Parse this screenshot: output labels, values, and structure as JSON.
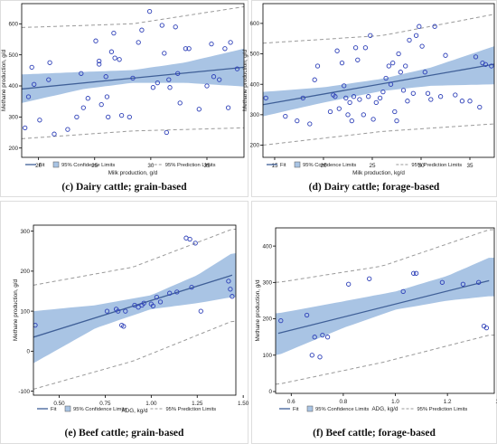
{
  "figure": {
    "legend": {
      "fit": "Fit",
      "confidence": "95% Confidence Limits",
      "prediction": "95% Prediction Limits"
    },
    "colors": {
      "band": "#a9c4e4",
      "fit_line": "#3f5f97",
      "point": "#2e40b8",
      "prediction": "#9a9a9a",
      "frame": "#000000"
    }
  },
  "chart_data": [
    {
      "type": "scatter",
      "panel": "c",
      "caption": "(c) Dairy cattle; grain-based",
      "xlabel": "Milk production, g/d",
      "ylabel": "Methane production, g/d",
      "xlim": [
        18.5,
        38.3
      ],
      "ylim": [
        170,
        665
      ],
      "xticks": [
        20,
        25,
        30,
        35
      ],
      "yticks": [
        200,
        300,
        400,
        500,
        600
      ],
      "fit": [
        [
          18.5,
          390
        ],
        [
          38.3,
          460
        ]
      ],
      "confidence": {
        "x": [
          18.5,
          24,
          28.4,
          33,
          38.3
        ],
        "lower": [
          345,
          390,
          410,
          410,
          398
        ],
        "upper": [
          437,
          445,
          451,
          475,
          520
        ]
      },
      "prediction": {
        "x": [
          18.5,
          28.4,
          38.3
        ],
        "lower": [
          230,
          255,
          265
        ],
        "upper": [
          588,
          600,
          655
        ]
      },
      "x": [
        18.8,
        19.1,
        19.4,
        19.6,
        20.1,
        20.9,
        21.0,
        21.4,
        22.6,
        23.4,
        23.8,
        24.0,
        24.4,
        25.1,
        25.4,
        25.4,
        25.6,
        26.0,
        26.1,
        26.2,
        26.5,
        26.7,
        26.8,
        27.2,
        27.4,
        28.1,
        28.4,
        28.9,
        29.2,
        29.9,
        30.2,
        30.6,
        31.0,
        31.2,
        31.4,
        31.6,
        31.7,
        32.2,
        32.4,
        32.6,
        33.1,
        33.4,
        34.3,
        35.0,
        35.4,
        35.6,
        36.1,
        36.6,
        36.9,
        37.1,
        37.7
      ],
      "y": [
        265,
        365,
        460,
        405,
        290,
        420,
        475,
        245,
        260,
        300,
        440,
        330,
        360,
        545,
        470,
        480,
        340,
        430,
        365,
        300,
        510,
        570,
        490,
        485,
        305,
        300,
        425,
        540,
        580,
        640,
        395,
        410,
        595,
        505,
        250,
        420,
        395,
        590,
        440,
        345,
        520,
        520,
        325,
        400,
        535,
        430,
        420,
        520,
        330,
        540,
        455
      ]
    },
    {
      "type": "scatter",
      "panel": "d",
      "caption": "(d) Dairy cattle; forage-based",
      "xlabel": "Milk production, kg/d",
      "ylabel": "Methane production, g/d",
      "xlim": [
        13.8,
        37.5
      ],
      "ylim": [
        160,
        665
      ],
      "xticks": [
        15,
        20,
        25,
        30,
        35
      ],
      "yticks": [
        200,
        300,
        400,
        500,
        600
      ],
      "fit": [
        [
          13.8,
          333
        ],
        [
          37.5,
          466
        ]
      ],
      "confidence": {
        "x": [
          13.8,
          20,
          26,
          31,
          37.5
        ],
        "lower": [
          295,
          340,
          378,
          395,
          400
        ],
        "upper": [
          375,
          390,
          418,
          455,
          525
        ]
      },
      "prediction": {
        "x": [
          13.8,
          26,
          37.5
        ],
        "lower": [
          200,
          245,
          270
        ],
        "upper": [
          535,
          560,
          630
        ]
      },
      "x": [
        14.1,
        16.1,
        17.3,
        17.9,
        18.6,
        19.1,
        19.4,
        20.7,
        21.0,
        21.2,
        21.4,
        21.6,
        21.9,
        22.1,
        22.3,
        22.5,
        22.7,
        22.9,
        23.1,
        23.3,
        23.5,
        23.7,
        24.1,
        24.3,
        24.6,
        24.8,
        25.1,
        25.4,
        25.8,
        26.1,
        26.4,
        26.7,
        26.9,
        27.1,
        27.3,
        27.5,
        27.7,
        27.9,
        28.2,
        28.4,
        28.6,
        28.8,
        29.2,
        29.5,
        29.8,
        30.1,
        30.4,
        30.7,
        31.0,
        31.4,
        32.0,
        32.5,
        33.5,
        34.2,
        35.0,
        35.6,
        36.0,
        36.3,
        36.6,
        37.2
      ],
      "y": [
        355,
        295,
        280,
        355,
        270,
        415,
        460,
        310,
        365,
        360,
        510,
        320,
        470,
        395,
        355,
        300,
        340,
        280,
        360,
        520,
        480,
        350,
        300,
        520,
        360,
        560,
        285,
        340,
        355,
        375,
        420,
        460,
        400,
        470,
        310,
        280,
        500,
        440,
        380,
        460,
        345,
        545,
        370,
        560,
        590,
        525,
        440,
        370,
        350,
        590,
        360,
        495,
        365,
        345,
        345,
        490,
        325,
        470,
        465,
        460
      ]
    },
    {
      "type": "scatter",
      "panel": "e",
      "caption": "(e) Beef cattle; grain-based",
      "xlabel": "ADG, kg/d",
      "ylabel": "Methane production, g/d",
      "xlim": [
        0.36,
        1.46
      ],
      "ylim": [
        -110,
        315
      ],
      "xticks": [
        0.5,
        0.75,
        1.0,
        1.25,
        1.5
      ],
      "xtick_labels": [
        "0.50",
        "0.75",
        "1.00",
        "1.25",
        "1.50"
      ],
      "yticks": [
        -100,
        0,
        100,
        200,
        300
      ],
      "fit": [
        [
          0.36,
          35
        ],
        [
          1.44,
          190
        ]
      ],
      "confidence": {
        "x": [
          0.36,
          0.7,
          1.0,
          1.25,
          1.44
        ],
        "lower": [
          -30,
          58,
          105,
          120,
          135
        ],
        "upper": [
          100,
          115,
          140,
          190,
          245
        ]
      },
      "prediction": {
        "x": [
          0.36,
          0.9,
          1.44
        ],
        "lower": [
          -95,
          -25,
          75
        ],
        "upper": [
          165,
          210,
          305
        ]
      },
      "x": [
        0.37,
        0.76,
        0.81,
        0.82,
        0.84,
        0.85,
        0.86,
        0.91,
        0.93,
        0.95,
        0.96,
        1.0,
        1.01,
        1.03,
        1.05,
        1.1,
        1.14,
        1.19,
        1.21,
        1.22,
        1.24,
        1.27,
        1.42,
        1.43,
        1.44
      ],
      "y": [
        65,
        100,
        105,
        100,
        65,
        62,
        100,
        115,
        110,
        115,
        120,
        118,
        113,
        135,
        123,
        145,
        148,
        283,
        280,
        160,
        270,
        100,
        175,
        155,
        137
      ]
    },
    {
      "type": "scatter",
      "panel": "f",
      "caption": "(f) Beef cattle; forage-based",
      "xlabel": "ADG, kg/d",
      "ylabel": "Methane production, g/d",
      "xlim": [
        0.54,
        1.38
      ],
      "ylim": [
        -5,
        450
      ],
      "xticks": [
        0.6,
        0.8,
        1.0,
        1.2,
        1.4
      ],
      "xtick_labels": [
        "0.6",
        "0.8",
        "1.0",
        "1.2",
        "1.4"
      ],
      "yticks": [
        0,
        100,
        200,
        300,
        400
      ],
      "fit": [
        [
          0.55,
          160
        ],
        [
          1.36,
          305
        ]
      ],
      "confidence": {
        "x": [
          0.55,
          0.8,
          1.0,
          1.2,
          1.36
        ],
        "lower": [
          100,
          175,
          225,
          250,
          262
        ],
        "upper": [
          215,
          248,
          275,
          318,
          368
        ]
      },
      "prediction": {
        "x": [
          0.55,
          0.95,
          1.36
        ],
        "lower": [
          20,
          80,
          155
        ],
        "upper": [
          300,
          345,
          445
        ]
      },
      "x": [
        0.56,
        0.66,
        0.68,
        0.69,
        0.71,
        0.72,
        0.74,
        0.82,
        0.9,
        1.03,
        1.07,
        1.08,
        1.18,
        1.26,
        1.32,
        1.34,
        1.35
      ],
      "y": [
        195,
        210,
        100,
        150,
        95,
        155,
        150,
        295,
        310,
        275,
        325,
        325,
        300,
        295,
        300,
        180,
        175
      ]
    }
  ]
}
